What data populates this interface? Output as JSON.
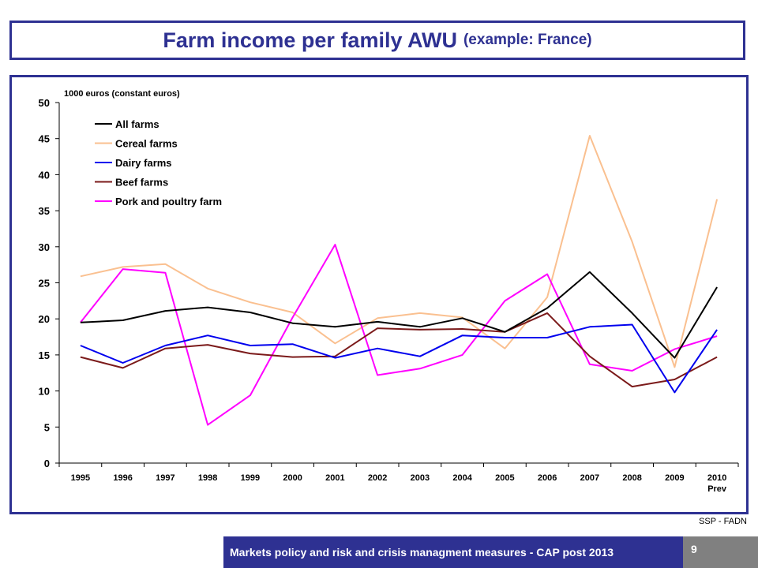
{
  "header": {
    "title": "Farm income per family AWU",
    "subtitle": "(example: France)"
  },
  "footer": {
    "text": "Markets policy and risk and crisis managment measures - CAP post 2013",
    "page_number": "9",
    "source": "SSP - FADN"
  },
  "colors": {
    "accent": "#2e3192",
    "page_box": "#808080"
  },
  "chart_data": {
    "type": "line",
    "ylabel": "1000 euros (constant euros)",
    "xlabel": "",
    "ylim": [
      0,
      50
    ],
    "yticks": [
      0,
      5,
      10,
      15,
      20,
      25,
      30,
      35,
      40,
      45,
      50
    ],
    "grid": false,
    "legend_position": "top-left",
    "categories": [
      "1995",
      "1996",
      "1997",
      "1998",
      "1999",
      "2000",
      "2001",
      "2002",
      "2003",
      "2004",
      "2005",
      "2006",
      "2007",
      "2008",
      "2009",
      "2010"
    ],
    "category_sublabels": [
      "",
      "",
      "",
      "",
      "",
      "",
      "",
      "",
      "",
      "",
      "",
      "",
      "",
      "",
      "",
      "Prev"
    ],
    "series": [
      {
        "name": "All farms",
        "color": "#000000",
        "values": [
          19.5,
          19.8,
          21.1,
          21.6,
          20.9,
          19.4,
          18.9,
          19.6,
          18.9,
          20.1,
          18.2,
          21.5,
          26.5,
          20.8,
          14.6,
          24.4
        ]
      },
      {
        "name": "Cereal farms",
        "color": "#fac090",
        "values": [
          25.9,
          27.2,
          27.6,
          24.2,
          22.3,
          20.9,
          16.6,
          20.1,
          20.8,
          20.2,
          15.9,
          23.0,
          45.4,
          30.7,
          13.3,
          36.6
        ]
      },
      {
        "name": "Dairy farms",
        "color": "#0000ee",
        "values": [
          16.3,
          13.9,
          16.3,
          17.7,
          16.3,
          16.5,
          14.6,
          15.9,
          14.8,
          17.7,
          17.4,
          17.4,
          18.9,
          19.2,
          9.8,
          18.5
        ]
      },
      {
        "name": "Beef farms",
        "color": "#7b1a1a",
        "values": [
          14.7,
          13.2,
          15.9,
          16.4,
          15.2,
          14.7,
          14.8,
          18.7,
          18.5,
          18.6,
          18.2,
          20.8,
          14.8,
          10.6,
          11.6,
          14.7
        ]
      },
      {
        "name": "Pork and poultry farm",
        "color": "#ff00ff",
        "values": [
          19.5,
          26.9,
          26.4,
          5.3,
          9.4,
          20.2,
          30.3,
          12.2,
          13.1,
          15.0,
          22.5,
          26.2,
          13.7,
          12.8,
          15.8,
          17.6
        ]
      }
    ]
  }
}
